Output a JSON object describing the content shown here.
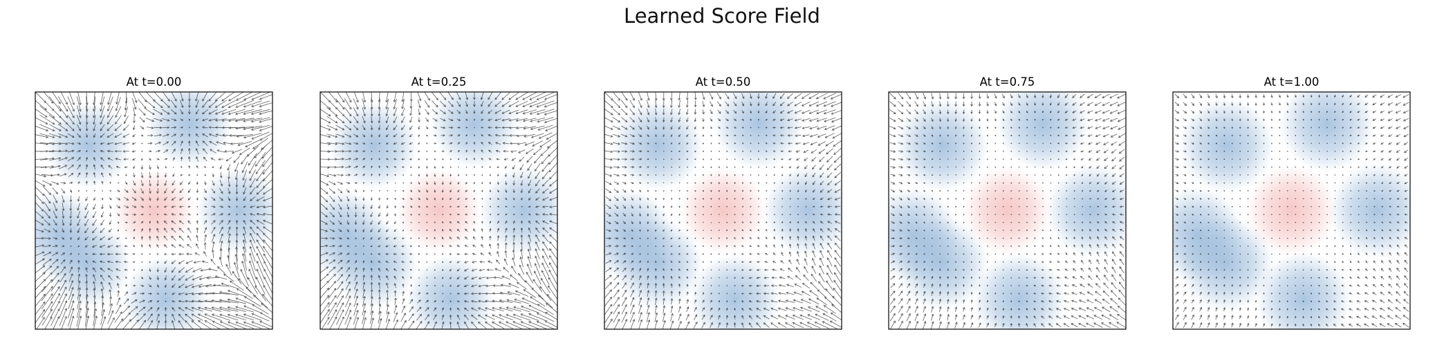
{
  "title": "Learned Score Field",
  "colors": {
    "background": "#ffffff",
    "positive_blob": "#f2b6b4",
    "negative_blob": "#8fb2d6",
    "arrow": "#1a1a1a",
    "frame": "#000000"
  },
  "chart_data": {
    "type": "quiver",
    "title": "Learned Score Field",
    "xlim": [
      -1,
      1
    ],
    "ylim": [
      -1,
      1
    ],
    "grid": false,
    "axes_ticks": false,
    "panels": [
      {
        "title": "At t=0.00",
        "t": 0.0,
        "center_blob": {
          "x": 0.0,
          "y": 0.0,
          "sign": "positive"
        },
        "outer_blobs": [
          {
            "x": 0.72,
            "y": 0.0
          },
          {
            "x": 0.3,
            "y": 0.73
          },
          {
            "x": -0.55,
            "y": 0.55
          },
          {
            "x": -0.8,
            "y": -0.2
          },
          {
            "x": -0.55,
            "y": -0.45
          },
          {
            "x": 0.1,
            "y": -0.75
          }
        ]
      },
      {
        "title": "At t=0.25",
        "t": 0.25,
        "center_blob": {
          "x": 0.0,
          "y": 0.0,
          "sign": "positive"
        },
        "outer_blobs": [
          {
            "x": 0.72,
            "y": 0.0
          },
          {
            "x": 0.3,
            "y": 0.73
          },
          {
            "x": -0.55,
            "y": 0.55
          },
          {
            "x": -0.8,
            "y": -0.2
          },
          {
            "x": -0.55,
            "y": -0.45
          },
          {
            "x": 0.1,
            "y": -0.75
          }
        ]
      },
      {
        "title": "At t=0.50",
        "t": 0.5,
        "center_blob": {
          "x": 0.0,
          "y": 0.0,
          "sign": "positive"
        },
        "outer_blobs": [
          {
            "x": 0.72,
            "y": 0.0
          },
          {
            "x": 0.3,
            "y": 0.73
          },
          {
            "x": -0.55,
            "y": 0.55
          },
          {
            "x": -0.8,
            "y": -0.2
          },
          {
            "x": -0.55,
            "y": -0.45
          },
          {
            "x": 0.1,
            "y": -0.75
          }
        ]
      },
      {
        "title": "At t=0.75",
        "t": 0.75,
        "center_blob": {
          "x": 0.0,
          "y": 0.0,
          "sign": "positive"
        },
        "outer_blobs": [
          {
            "x": 0.72,
            "y": 0.0
          },
          {
            "x": 0.3,
            "y": 0.73
          },
          {
            "x": -0.55,
            "y": 0.55
          },
          {
            "x": -0.8,
            "y": -0.2
          },
          {
            "x": -0.55,
            "y": -0.45
          },
          {
            "x": 0.1,
            "y": -0.75
          }
        ]
      },
      {
        "title": "At t=1.00",
        "t": 1.0,
        "center_blob": {
          "x": 0.0,
          "y": 0.0,
          "sign": "positive"
        },
        "outer_blobs": [
          {
            "x": 0.72,
            "y": 0.0
          },
          {
            "x": 0.3,
            "y": 0.73
          },
          {
            "x": -0.55,
            "y": 0.55
          },
          {
            "x": -0.8,
            "y": -0.2
          },
          {
            "x": -0.55,
            "y": -0.45
          },
          {
            "x": 0.1,
            "y": -0.75
          }
        ]
      }
    ]
  }
}
